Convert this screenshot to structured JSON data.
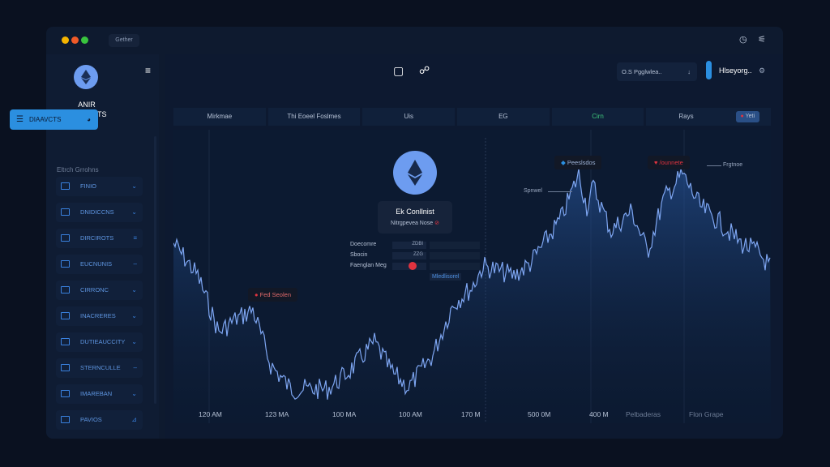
{
  "titlebar": {
    "button": "Gether"
  },
  "sidebar": {
    "brand_line1": "ANIR",
    "brand_line2": "EXAMEKTS",
    "active": "DIAAVCTS",
    "section": "Eltrch Grrohns",
    "items": [
      {
        "label": "FINIO",
        "chev": "⌄"
      },
      {
        "label": "DNIDICCNS",
        "chev": "⌄"
      },
      {
        "label": "DIRCIROTS",
        "chev": "≡"
      },
      {
        "label": "EUCNUNIS",
        "chev": "–"
      },
      {
        "label": "CIRRONC",
        "chev": "⌄"
      },
      {
        "label": "INACRERES",
        "chev": "⌄"
      },
      {
        "label": "DUTIEAUCCITY",
        "chev": "⌄"
      },
      {
        "label": "STERNCULLE",
        "chev": "–"
      },
      {
        "label": "IMAREBAN",
        "chev": "⌄"
      },
      {
        "label": "PAVIOS",
        "chev": "⊿"
      }
    ]
  },
  "header": {
    "select": "O.S Pgglwlea..",
    "user": "Hlseyorg.."
  },
  "tabs": [
    "Mirkmae",
    "Thi Eoeel Foslmes",
    "Uis",
    "EG",
    "Cirn",
    "Rays"
  ],
  "tab_badge": "Yeti",
  "center": {
    "title": "Ek Conllnist",
    "subtitle": "Nitrgpevea Nose",
    "rows": [
      {
        "label": "Doecomre",
        "value": "ZDBI"
      },
      {
        "label": "Sbocin",
        "value": "ZZG"
      },
      {
        "label": "Faenglan Meg",
        "value": ""
      }
    ],
    "link": "Mledlisorel"
  },
  "annotations": {
    "left": "Fed Seolen",
    "peak1": "Peeslsdos",
    "peak2": "/ounnete",
    "side_left": "Spnwel",
    "side_right": "Frgtnoe"
  },
  "x_labels": [
    "120 AM",
    "123 MA",
    "100 MA",
    "100 AM",
    "170 M",
    "500 0M",
    "400 M",
    "Pelbaderas",
    "Flon Grape"
  ],
  "colors": {
    "accent": "#2b8fe0",
    "line": "#7ea6f2",
    "alert": "#e0333f"
  }
}
